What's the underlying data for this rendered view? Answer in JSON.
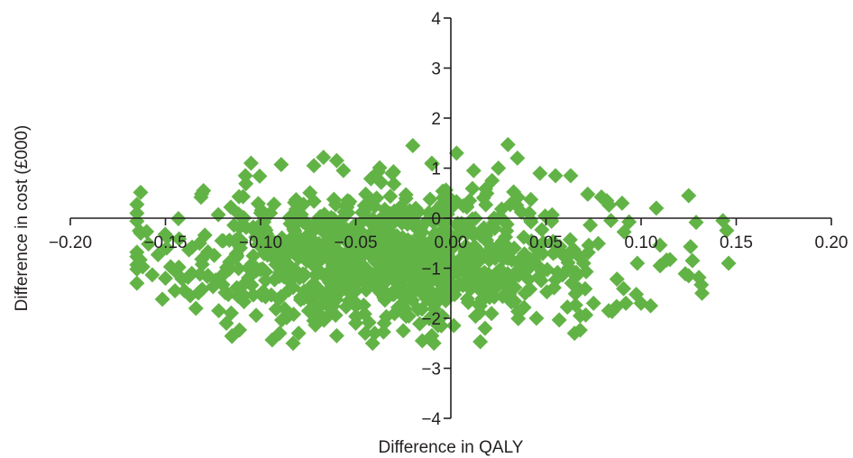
{
  "chart_data": {
    "type": "scatter",
    "title": "",
    "xlabel": "Difference in QALY",
    "ylabel": "Difference in cost (£000)",
    "xlim": [
      -0.2,
      0.2
    ],
    "ylim": [
      -4,
      4
    ],
    "x_ticks": [
      -0.2,
      -0.15,
      -0.1,
      -0.05,
      0.0,
      0.05,
      0.1,
      0.15,
      0.2
    ],
    "x_tick_labels": [
      "−0.20",
      "−0.15",
      "−0.10",
      "−0.05",
      "0.00",
      "0.05",
      "0.10",
      "0.15",
      "0.20"
    ],
    "y_ticks": [
      -4,
      -3,
      -2,
      -1,
      0,
      1,
      2,
      3,
      4
    ],
    "y_tick_labels": [
      "−4",
      "−3",
      "−2",
      "−1",
      "0",
      "1",
      "2",
      "3",
      "4"
    ],
    "marker": "diamond",
    "marker_color": "#62b346",
    "grid": false,
    "legend": "none",
    "cloud": {
      "center": [
        -0.03,
        -0.75
      ],
      "x_extent": [
        -0.165,
        0.145
      ],
      "y_extent": [
        -2.5,
        1.47
      ],
      "approx_point_count": 1000
    },
    "series": [
      {
        "points": [
          [
            -0.165,
            0.1
          ],
          [
            -0.163,
            -0.3
          ],
          [
            -0.15,
            -1.2
          ],
          [
            -0.145,
            -1.05
          ],
          [
            -0.145,
            -1.45
          ],
          [
            -0.14,
            -1.45
          ],
          [
            -0.137,
            -1.55
          ],
          [
            -0.13,
            0.55
          ],
          [
            -0.122,
            -1.85
          ],
          [
            -0.118,
            -2.1
          ],
          [
            -0.115,
            -2.35
          ],
          [
            -0.105,
            1.1
          ],
          [
            -0.108,
            0.85
          ],
          [
            -0.09,
            -2.3
          ],
          [
            -0.08,
            -2.3
          ],
          [
            -0.072,
            1.05
          ],
          [
            -0.06,
            -2.35
          ],
          [
            -0.06,
            1.15
          ],
          [
            -0.05,
            -2.1
          ],
          [
            -0.045,
            -2.3
          ],
          [
            -0.04,
            -2.3
          ],
          [
            -0.035,
            -2.1
          ],
          [
            -0.025,
            -2.25
          ],
          [
            -0.02,
            1.45
          ],
          [
            -0.015,
            -2.45
          ],
          [
            -0.01,
            -2.35
          ],
          [
            -0.01,
            1.1
          ],
          [
            -0.005,
            -2.15
          ],
          [
            0.003,
            1.3
          ],
          [
            0.012,
            0.95
          ],
          [
            0.018,
            -2.2
          ],
          [
            0.025,
            1.0
          ],
          [
            0.03,
            1.47
          ],
          [
            0.035,
            1.2
          ],
          [
            0.045,
            -2.0
          ],
          [
            0.055,
            0.85
          ],
          [
            0.063,
            0.85
          ],
          [
            0.065,
            -2.3
          ],
          [
            0.068,
            -1.95
          ],
          [
            0.075,
            -1.7
          ],
          [
            0.083,
            -1.85
          ],
          [
            0.09,
            0.3
          ],
          [
            0.092,
            -1.7
          ],
          [
            0.098,
            -0.9
          ],
          [
            0.1,
            -1.7
          ],
          [
            0.105,
            -1.75
          ],
          [
            0.108,
            0.2
          ],
          [
            0.11,
            -0.95
          ],
          [
            0.125,
            0.45
          ],
          [
            0.127,
            -0.85
          ],
          [
            0.125,
            -1.15
          ],
          [
            0.132,
            -1.5
          ],
          [
            0.143,
            -0.05
          ],
          [
            0.146,
            -0.9
          ]
        ]
      }
    ]
  }
}
